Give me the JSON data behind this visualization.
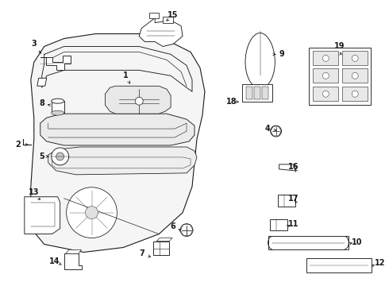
{
  "background_color": "#ffffff",
  "line_color": "#1a1a1a",
  "lw": 0.8,
  "figsize": [
    4.9,
    3.6
  ],
  "dpi": 100
}
